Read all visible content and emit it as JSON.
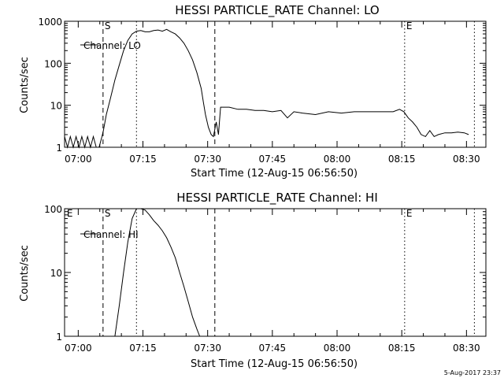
{
  "footer": {
    "timestamp": "5-Aug-2017 23:37"
  },
  "chart_data": [
    {
      "type": "line",
      "title": "HESSI PARTICLE_RATE Channel: LO",
      "xlabel": "Start Time (12-Aug-15 06:56:50)",
      "ylabel": "Counts/sec",
      "yscale": "log",
      "xlim": [
        "06:56:50",
        "08:34:30"
      ],
      "ylim": [
        1,
        1000
      ],
      "xticks": [
        "07:00",
        "07:15",
        "07:30",
        "07:45",
        "08:00",
        "08:15",
        "08:30"
      ],
      "yticks": [
        "1",
        "10",
        "100",
        "1000"
      ],
      "legend": "top-left",
      "grid": false,
      "series": [
        {
          "name": "Channel: LO",
          "x": [
            "06:56:50",
            "06:57:30",
            "06:58:10",
            "06:58:50",
            "06:59:30",
            "07:00:10",
            "07:00:50",
            "07:01:30",
            "07:02:10",
            "07:02:50",
            "07:03:30",
            "07:04:10",
            "07:04:50",
            "07:05:30",
            "07:05:50",
            "07:06:30",
            "07:07:30",
            "07:08:30",
            "07:09:30",
            "07:10:30",
            "07:11:30",
            "07:12:30",
            "07:13:30",
            "07:14:30",
            "07:15:30",
            "07:16:30",
            "07:17:30",
            "07:18:30",
            "07:19:30",
            "07:20:30",
            "07:21:30",
            "07:22:30",
            "07:23:30",
            "07:24:30",
            "07:25:30",
            "07:26:30",
            "07:27:30",
            "07:28:30",
            "07:29:00",
            "07:29:30",
            "07:30:10",
            "07:30:50",
            "07:31:20",
            "07:32:00",
            "07:32:30",
            "07:33:00",
            "07:35:00",
            "07:37:00",
            "07:39:00",
            "07:41:00",
            "07:43:00",
            "07:45:00",
            "07:47:00",
            "07:48:30",
            "07:50:00",
            "07:52:00",
            "07:55:00",
            "07:58:00",
            "08:01:00",
            "08:04:00",
            "08:07:00",
            "08:10:00",
            "08:13:00",
            "08:14:30",
            "08:15:30",
            "08:16:30",
            "08:17:30",
            "08:18:30",
            "08:19:30",
            "08:20:30",
            "08:21:30",
            "08:22:30",
            "08:23:30",
            "08:25:00",
            "08:26:30",
            "08:28:00",
            "08:29:30",
            "08:30:30"
          ],
          "y": [
            1.8,
            1,
            1.8,
            1,
            1.8,
            1,
            1.8,
            1,
            1.8,
            1,
            1.8,
            1,
            1,
            1.8,
            2.5,
            6,
            15,
            40,
            90,
            200,
            350,
            500,
            580,
            600,
            560,
            560,
            600,
            620,
            580,
            640,
            560,
            500,
            400,
            300,
            200,
            120,
            60,
            25,
            12,
            6,
            3,
            2,
            1.8,
            4,
            2,
            9,
            9,
            8,
            8,
            7.5,
            7.5,
            7,
            7.5,
            5,
            7,
            6.5,
            6,
            7,
            6.5,
            7,
            7,
            7,
            7,
            8,
            7,
            5,
            4,
            3,
            2,
            1.8,
            2.5,
            1.8,
            2,
            2.2,
            2.2,
            2.3,
            2.2,
            2
          ]
        }
      ],
      "markers": [
        {
          "label": "S",
          "x": "07:05:45",
          "style": "dashed"
        },
        {
          "label": "",
          "x": "07:13:30",
          "style": "dotted"
        },
        {
          "label": "",
          "x": "07:31:40",
          "style": "dashed"
        },
        {
          "label": "E",
          "x": "08:15:40",
          "style": "dotted"
        },
        {
          "label": "",
          "x": "08:31:50",
          "style": "dotted"
        }
      ]
    },
    {
      "type": "line",
      "title": "HESSI PARTICLE_RATE Channel: HI",
      "xlabel": "Start Time (12-Aug-15 06:56:50)",
      "ylabel": "Counts/sec",
      "yscale": "log",
      "xlim": [
        "06:56:50",
        "08:34:30"
      ],
      "ylim": [
        1,
        100
      ],
      "xticks": [
        "07:00",
        "07:15",
        "07:30",
        "07:45",
        "08:00",
        "08:15",
        "08:30"
      ],
      "yticks": [
        "1",
        "10",
        "100"
      ],
      "legend": "top-left",
      "grid": false,
      "series": [
        {
          "name": "Channel: HI",
          "x": [
            "07:08:30",
            "07:09:30",
            "07:10:30",
            "07:11:30",
            "07:12:30",
            "07:13:30",
            "07:14:30",
            "07:15:30",
            "07:16:30",
            "07:17:30",
            "07:18:30",
            "07:19:30",
            "07:20:30",
            "07:21:30",
            "07:22:30",
            "07:23:30",
            "07:24:30",
            "07:25:30",
            "07:26:30",
            "07:27:30",
            "07:28:10"
          ],
          "y": [
            1,
            3,
            10,
            30,
            70,
            100,
            100,
            95,
            80,
            65,
            55,
            45,
            35,
            25,
            17,
            10,
            6,
            3.5,
            2,
            1.3,
            1
          ]
        }
      ],
      "markers": [
        {
          "label": "E",
          "x": "06:57:00",
          "style": "none"
        },
        {
          "label": "S",
          "x": "07:05:45",
          "style": "dashed"
        },
        {
          "label": "",
          "x": "07:13:30",
          "style": "dotted"
        },
        {
          "label": "",
          "x": "07:31:40",
          "style": "dashed"
        },
        {
          "label": "E",
          "x": "08:15:40",
          "style": "dotted"
        },
        {
          "label": "",
          "x": "08:31:50",
          "style": "dotted"
        }
      ]
    }
  ]
}
